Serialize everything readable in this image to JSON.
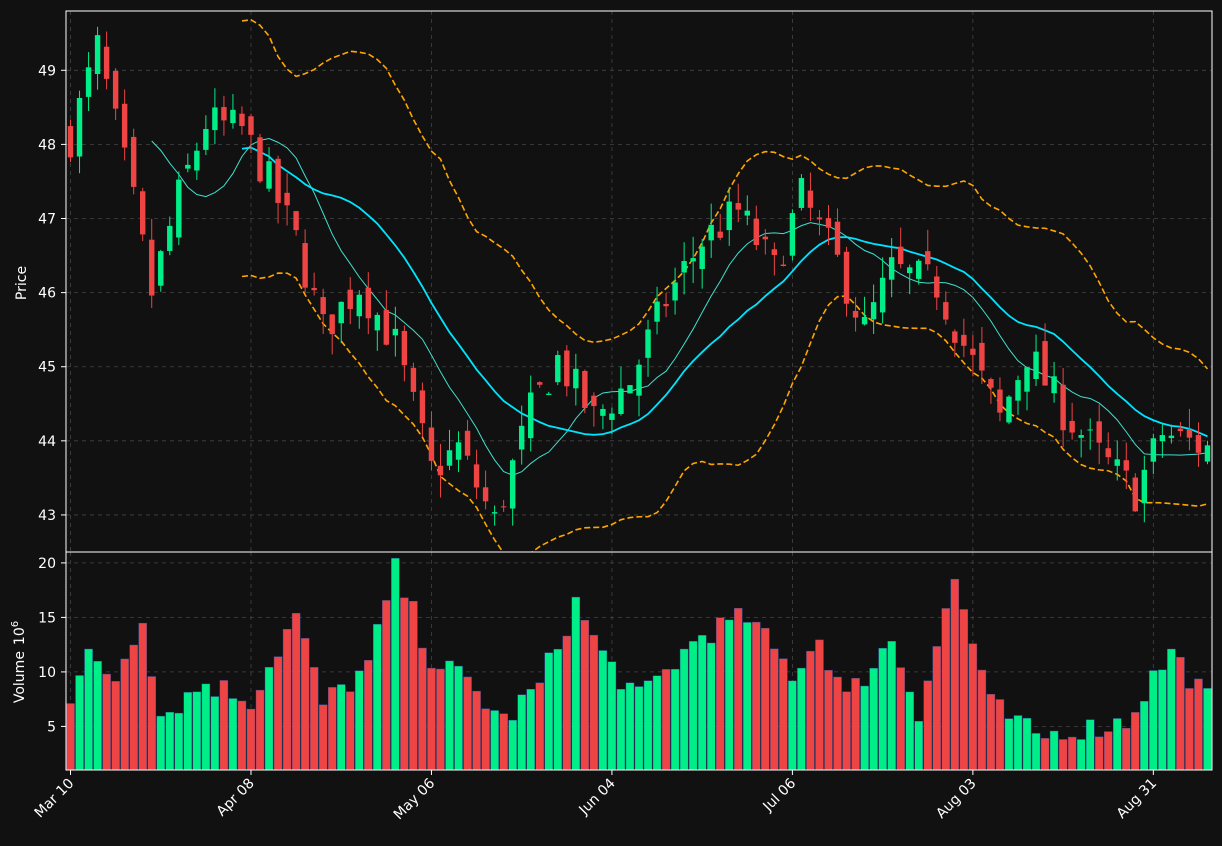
{
  "colors": {
    "background": "#111111",
    "up": "#00ee88",
    "down": "#ee4444",
    "ma_fast": "#40e0d0",
    "ma_slow": "#00e5ff",
    "bollinger": "#ffa500",
    "grid": "#444444",
    "frame": "#ffffff"
  },
  "chart_data": {
    "type": "candlestick",
    "grid": true,
    "price_panel": {
      "ylabel": "Price",
      "ylim": [
        42.5,
        49.8
      ],
      "yticks": [
        43,
        44,
        45,
        46,
        47,
        48,
        49
      ]
    },
    "volume_panel": {
      "ylabel": "Volume",
      "ylabel_exp": "10",
      "ylabel_sup": "6",
      "ylim": [
        1.0,
        21.0
      ],
      "yticks": [
        5,
        10,
        15,
        20
      ]
    },
    "x_tick_labels": [
      {
        "label": "Mar 10",
        "index": 0
      },
      {
        "label": "Apr 08",
        "index": 20
      },
      {
        "label": "May 06",
        "index": 40
      },
      {
        "label": "Jun 04",
        "index": 60
      },
      {
        "label": "Jul 06",
        "index": 80
      },
      {
        "label": "Aug 03",
        "index": 100
      },
      {
        "label": "Aug 31",
        "index": 120
      }
    ],
    "ohlc_anchor_closes": [
      [
        0,
        48.1
      ],
      [
        3,
        49.3
      ],
      [
        7,
        47.2
      ],
      [
        9,
        46.0
      ],
      [
        12,
        47.3
      ],
      [
        15,
        48.3
      ],
      [
        19,
        48.2
      ],
      [
        22,
        47.5
      ],
      [
        25,
        46.7
      ],
      [
        28,
        45.5
      ],
      [
        32,
        46.1
      ],
      [
        36,
        45.3
      ],
      [
        40,
        43.6
      ],
      [
        43,
        43.9
      ],
      [
        47,
        42.9
      ],
      [
        51,
        44.4
      ],
      [
        54,
        45.1
      ],
      [
        58,
        44.3
      ],
      [
        62,
        44.8
      ],
      [
        66,
        45.9
      ],
      [
        70,
        46.7
      ],
      [
        74,
        47.1
      ],
      [
        78,
        46.3
      ],
      [
        81,
        47.3
      ],
      [
        85,
        46.4
      ],
      [
        88,
        45.5
      ],
      [
        91,
        46.3
      ],
      [
        96,
        46.1
      ],
      [
        99,
        45.3
      ],
      [
        103,
        44.3
      ],
      [
        106,
        45.2
      ],
      [
        110,
        44.4
      ],
      [
        114,
        43.8
      ],
      [
        118,
        43.3
      ],
      [
        121,
        44.1
      ],
      [
        126,
        43.9
      ]
    ],
    "volume_anchors": [
      [
        0,
        7.5
      ],
      [
        2,
        11.2
      ],
      [
        5,
        9.5
      ],
      [
        8,
        15.3
      ],
      [
        10,
        6.0
      ],
      [
        15,
        9.0
      ],
      [
        20,
        7.5
      ],
      [
        25,
        15.2
      ],
      [
        28,
        7.0
      ],
      [
        33,
        10.5
      ],
      [
        36,
        19.3
      ],
      [
        40,
        11.3
      ],
      [
        44,
        9.0
      ],
      [
        48,
        5.5
      ],
      [
        52,
        8.8
      ],
      [
        56,
        16.3
      ],
      [
        59,
        11.5
      ],
      [
        63,
        7.5
      ],
      [
        70,
        13.5
      ],
      [
        75,
        15.0
      ],
      [
        80,
        9.9
      ],
      [
        83,
        13.1
      ],
      [
        86,
        7.5
      ],
      [
        91,
        13.0
      ],
      [
        94,
        6.5
      ],
      [
        98,
        18.5
      ],
      [
        102,
        7.0
      ],
      [
        107,
        4.0
      ],
      [
        113,
        4.8
      ],
      [
        117,
        5.5
      ],
      [
        120,
        9.5
      ],
      [
        122,
        11.8
      ],
      [
        126,
        7.5
      ]
    ],
    "moving_averages": [
      {
        "window": 10,
        "role": "fast"
      },
      {
        "window": 20,
        "role": "slow"
      }
    ],
    "bollinger": {
      "window": 20,
      "std": 2
    }
  }
}
